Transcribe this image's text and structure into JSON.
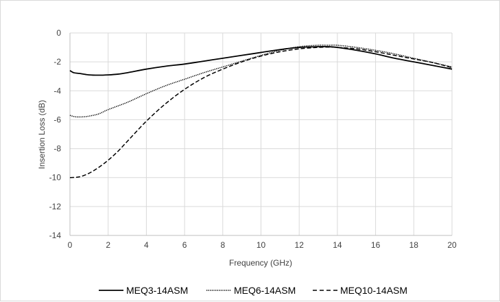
{
  "chart_data": {
    "type": "line",
    "title": "",
    "xlabel": "Frequency (GHz)",
    "ylabel": "Insertion Loss (dB)",
    "xlim": [
      0,
      20
    ],
    "ylim": [
      -14,
      0
    ],
    "x_ticks": [
      0,
      2,
      4,
      6,
      8,
      10,
      12,
      14,
      16,
      18,
      20
    ],
    "y_ticks": [
      0,
      -2,
      -4,
      -6,
      -8,
      -10,
      -12,
      -14
    ],
    "grid": "horizontal",
    "legend_position": "bottom",
    "series": [
      {
        "name": "MEQ3-14ASM",
        "style": "solid",
        "color": "#000000",
        "x": [
          0,
          0.2,
          0.5,
          1,
          1.5,
          2,
          2.5,
          3,
          4,
          5,
          6,
          7,
          8,
          9,
          10,
          11,
          12,
          13,
          13.5,
          14,
          15,
          16,
          17,
          18,
          19,
          20
        ],
        "y": [
          -2.6,
          -2.75,
          -2.8,
          -2.9,
          -2.92,
          -2.9,
          -2.85,
          -2.75,
          -2.5,
          -2.3,
          -2.15,
          -1.95,
          -1.75,
          -1.55,
          -1.35,
          -1.15,
          -1.0,
          -0.95,
          -0.95,
          -1.0,
          -1.2,
          -1.45,
          -1.75,
          -2.0,
          -2.25,
          -2.5
        ]
      },
      {
        "name": "MEQ6-14ASM",
        "style": "dotted",
        "color": "#000000",
        "x": [
          0,
          0.3,
          0.7,
          1,
          1.5,
          2,
          3,
          4,
          5,
          6,
          7,
          8,
          9,
          10,
          11,
          12,
          13,
          13.5,
          14,
          15,
          16,
          17,
          18,
          19,
          20
        ],
        "y": [
          -5.7,
          -5.8,
          -5.8,
          -5.75,
          -5.6,
          -5.3,
          -4.8,
          -4.2,
          -3.65,
          -3.2,
          -2.75,
          -2.35,
          -1.95,
          -1.55,
          -1.2,
          -0.95,
          -0.85,
          -0.85,
          -0.85,
          -1.0,
          -1.2,
          -1.45,
          -1.75,
          -2.05,
          -2.35
        ]
      },
      {
        "name": "MEQ10-14ASM",
        "style": "dashed",
        "color": "#000000",
        "x": [
          0,
          0.5,
          1,
          1.5,
          2,
          2.5,
          3,
          4,
          5,
          6,
          7,
          8,
          9,
          10,
          11,
          12,
          13,
          13.5,
          14,
          15,
          16,
          17,
          18,
          19,
          20
        ],
        "y": [
          -10.0,
          -9.95,
          -9.7,
          -9.3,
          -8.8,
          -8.2,
          -7.5,
          -6.1,
          -4.9,
          -3.9,
          -3.1,
          -2.5,
          -2.0,
          -1.6,
          -1.3,
          -1.1,
          -1.0,
          -0.98,
          -1.0,
          -1.1,
          -1.3,
          -1.55,
          -1.8,
          -2.05,
          -2.4
        ]
      }
    ]
  }
}
